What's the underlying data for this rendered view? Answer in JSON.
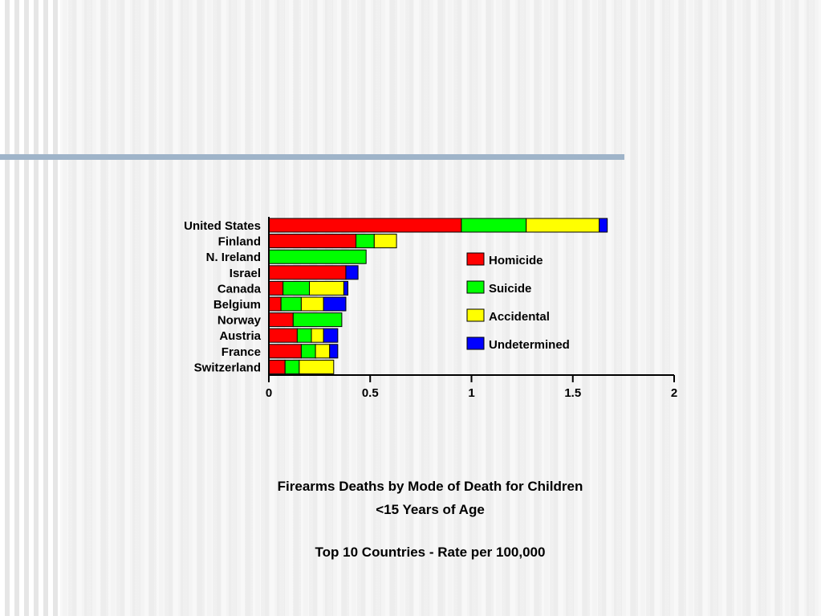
{
  "chart_data": {
    "type": "bar",
    "orientation": "horizontal",
    "stacked": true,
    "categories": [
      "United States",
      "Finland",
      "N. Ireland",
      "Israel",
      "Canada",
      "Belgium",
      "Norway",
      "Austria",
      "France",
      "Switzerland"
    ],
    "series": [
      {
        "name": "Homicide",
        "color": "#ff0000",
        "values": [
          0.95,
          0.43,
          0.0,
          0.38,
          0.07,
          0.06,
          0.12,
          0.14,
          0.16,
          0.08
        ]
      },
      {
        "name": "Suicide",
        "color": "#00ff00",
        "values": [
          0.32,
          0.09,
          0.48,
          0.0,
          0.13,
          0.1,
          0.24,
          0.07,
          0.07,
          0.07
        ]
      },
      {
        "name": "Accidental",
        "color": "#ffff00",
        "values": [
          0.36,
          0.11,
          0.0,
          0.0,
          0.17,
          0.11,
          0.0,
          0.06,
          0.07,
          0.17
        ]
      },
      {
        "name": "Undetermined",
        "color": "#0000ff",
        "values": [
          0.04,
          0.0,
          0.0,
          0.06,
          0.02,
          0.11,
          0.0,
          0.07,
          0.04,
          0.0
        ]
      }
    ],
    "xlim": [
      0,
      2
    ],
    "xticks": [
      "0",
      "0.5",
      "1",
      "1.5",
      "2"
    ],
    "grid": false,
    "legend_position": "right"
  },
  "caption": {
    "line1": "Firearms Deaths by Mode of Death for Children",
    "line2": "<15 Years of Age",
    "line3": "Top 10 Countries - Rate per 100,000"
  }
}
